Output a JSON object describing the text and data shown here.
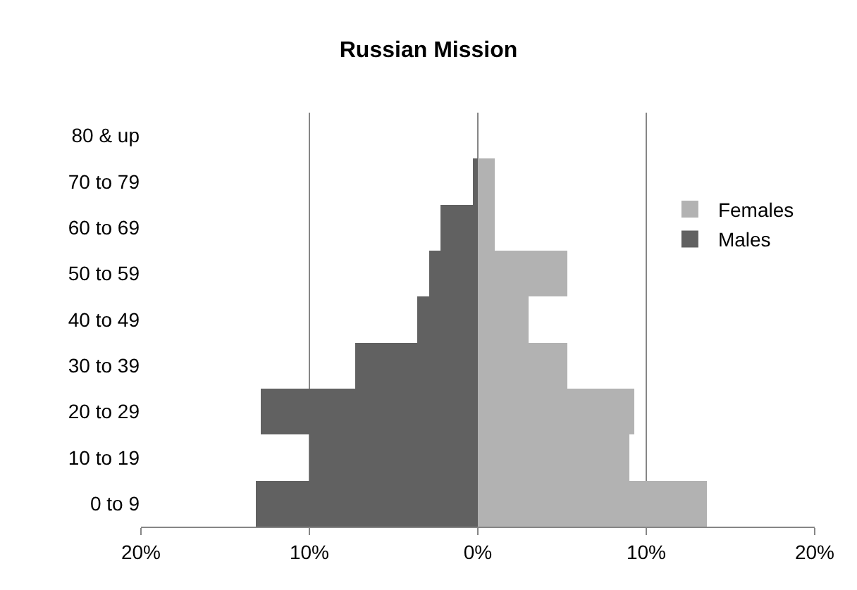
{
  "chart_data": {
    "type": "bar",
    "orientation": "horizontal",
    "title": "Russian Mission",
    "categories": [
      "80 & up",
      "70 to 79",
      "60 to 69",
      "50 to 59",
      "40 to 49",
      "30 to 39",
      "20 to 29",
      "10 to 19",
      "0 to 9"
    ],
    "series": [
      {
        "name": "Females",
        "color": "#b2b2b2",
        "values": [
          0,
          1.0,
          1.0,
          5.3,
          3.0,
          5.3,
          9.3,
          9.0,
          13.6
        ]
      },
      {
        "name": "Males",
        "color": "#616161",
        "values": [
          0,
          -0.3,
          -2.2,
          -2.9,
          -3.6,
          -7.3,
          -12.9,
          -10.0,
          -13.2
        ]
      }
    ],
    "xlim": [
      -20,
      20
    ],
    "xticks": [
      {
        "value": -20,
        "label": "20%"
      },
      {
        "value": -10,
        "label": "10%"
      },
      {
        "value": 0,
        "label": "0%"
      },
      {
        "value": 10,
        "label": "10%"
      },
      {
        "value": 20,
        "label": "20%"
      }
    ],
    "grid": "x",
    "legend": "right",
    "stacked": true
  }
}
